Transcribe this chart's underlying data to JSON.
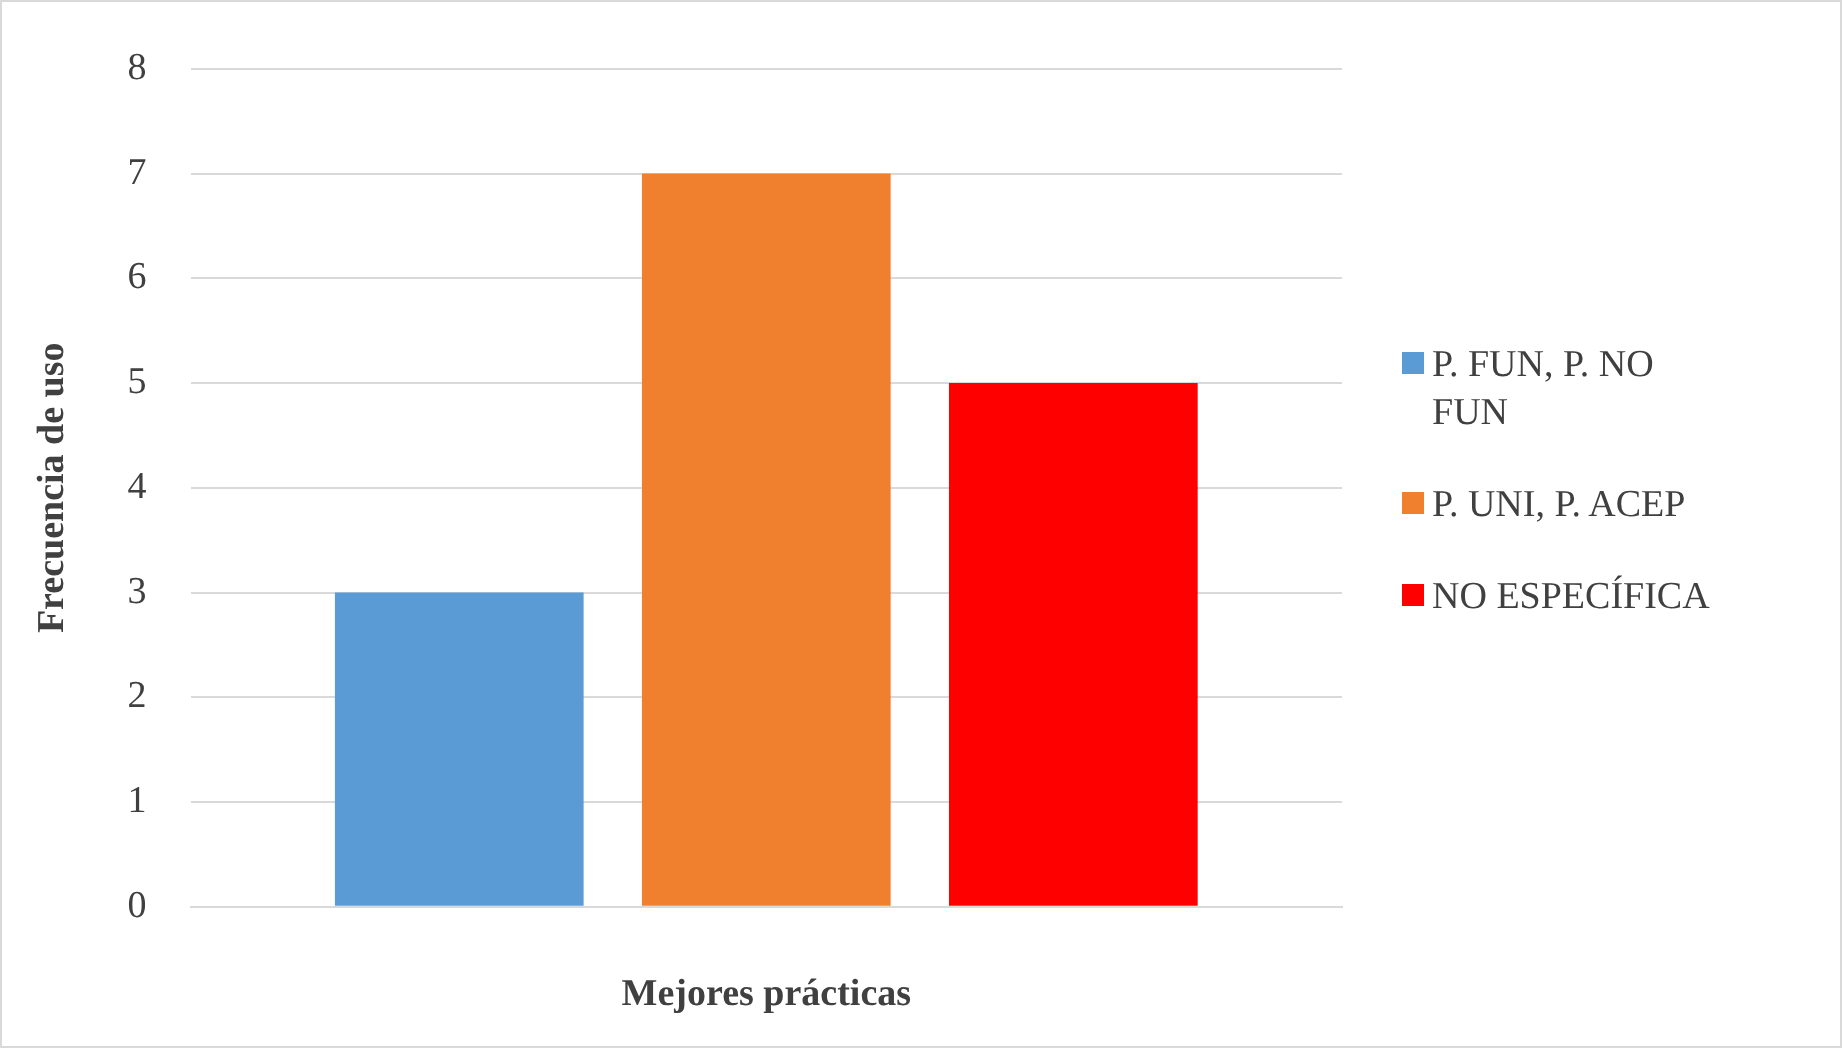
{
  "chart_data": {
    "type": "bar",
    "xlabel": "Mejores prácticas",
    "ylabel": "Frecuencia de uso",
    "categories": [
      null
    ],
    "series": [
      {
        "name": "P. FUN, P. NO FUN",
        "color": "#5b9bd5",
        "values": [
          3
        ]
      },
      {
        "name": "P. UNI, P. ACEP",
        "color": "#f07f2e",
        "values": [
          7
        ]
      },
      {
        "name": "NO ESPECÍFICA",
        "color": "#ff0000",
        "values": [
          5
        ]
      }
    ],
    "ylim": [
      0,
      8
    ],
    "yticks": [
      0,
      1,
      2,
      3,
      4,
      5,
      6,
      7,
      8
    ],
    "grid": "y",
    "legend": "right"
  }
}
